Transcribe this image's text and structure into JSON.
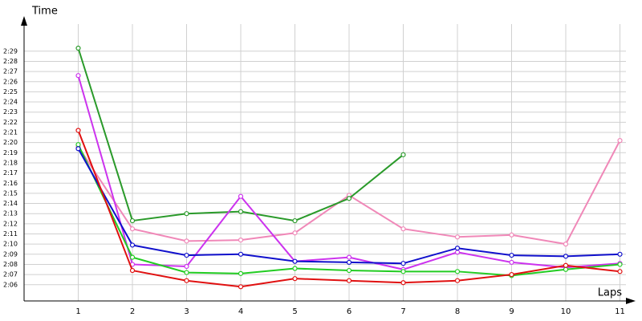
{
  "chart_data": {
    "type": "line",
    "y_label": "Time",
    "x_label": "Laps",
    "x": [
      1,
      2,
      3,
      4,
      5,
      6,
      7,
      8,
      9,
      10,
      11
    ],
    "xlim": [
      0,
      11.3
    ],
    "xticks": [
      1,
      2,
      3,
      4,
      5,
      6,
      7,
      8,
      9,
      10,
      11
    ],
    "ylim": [
      124.4,
      152.7
    ],
    "yticks": [
      {
        "value": 126,
        "label": "2:06"
      },
      {
        "value": 127,
        "label": "2:07"
      },
      {
        "value": 128,
        "label": "2:08"
      },
      {
        "value": 129,
        "label": "2:09"
      },
      {
        "value": 130,
        "label": "2:10"
      },
      {
        "value": 131,
        "label": "2:11"
      },
      {
        "value": 132,
        "label": "2:12"
      },
      {
        "value": 133,
        "label": "2:13"
      },
      {
        "value": 134,
        "label": "2:14"
      },
      {
        "value": 135,
        "label": "2:15"
      },
      {
        "value": 136,
        "label": "2:16"
      },
      {
        "value": 137,
        "label": "2:17"
      },
      {
        "value": 138,
        "label": "2:18"
      },
      {
        "value": 139,
        "label": "2:19"
      },
      {
        "value": 140,
        "label": "2:20"
      },
      {
        "value": 141,
        "label": "2:21"
      },
      {
        "value": 142,
        "label": "2:22"
      },
      {
        "value": 143,
        "label": "2:23"
      },
      {
        "value": 144,
        "label": "2:24"
      },
      {
        "value": 145,
        "label": "2:25"
      },
      {
        "value": 146,
        "label": "2:26"
      },
      {
        "value": 147,
        "label": "2:27"
      },
      {
        "value": 148,
        "label": "2:28"
      },
      {
        "value": 149,
        "label": "2:29"
      }
    ],
    "grid": true,
    "series": [
      {
        "color": "#f088b8",
        "values": [
          139.6,
          131.5,
          130.3,
          130.4,
          131.1,
          134.8,
          131.5,
          130.7,
          130.9,
          130.0,
          140.2
        ]
      },
      {
        "color": "#2a9a2a",
        "values": [
          149.3,
          132.3,
          133.0,
          133.2,
          132.3,
          134.5,
          138.8,
          null,
          null,
          null,
          null
        ]
      },
      {
        "color": "#cc33ee",
        "values": [
          146.6,
          128.0,
          127.8,
          134.7,
          128.3,
          128.7,
          127.5,
          129.2,
          128.2,
          127.7,
          128.1
        ]
      },
      {
        "color": "#22cc22",
        "values": [
          139.8,
          128.7,
          127.2,
          127.1,
          127.6,
          127.4,
          127.3,
          127.3,
          126.9,
          127.5,
          128.0
        ]
      },
      {
        "color": "#1010cc",
        "values": [
          139.4,
          129.9,
          128.9,
          129.0,
          128.3,
          128.2,
          128.1,
          129.6,
          128.9,
          128.8,
          129.0
        ]
      },
      {
        "color": "#e01010",
        "values": [
          141.2,
          127.4,
          126.4,
          125.8,
          126.6,
          126.4,
          126.2,
          126.4,
          127.0,
          127.9,
          127.3
        ]
      }
    ]
  }
}
